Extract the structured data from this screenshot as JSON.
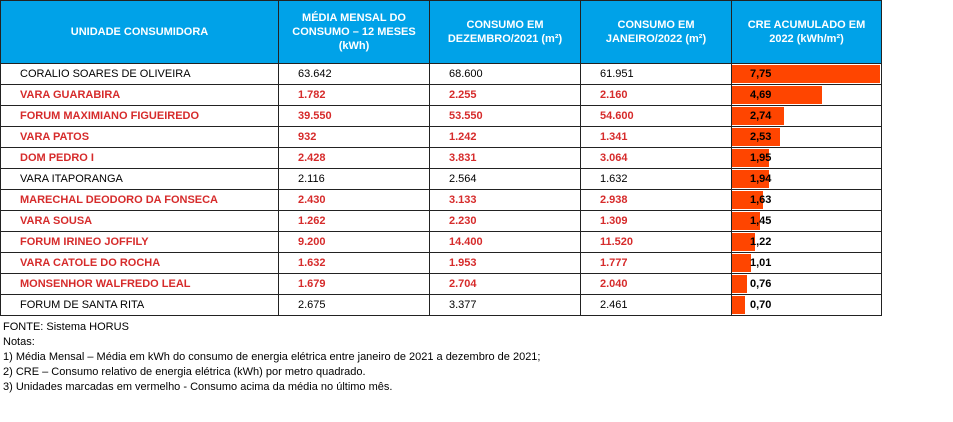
{
  "headers": {
    "unit": "UNIDADE CONSUMIDORA",
    "media": "MÉDIA MENSAL DO CONSUMO – 12 MESES (kWh)",
    "dez": "CONSUMO EM DEZEMBRO/2021 (m²)",
    "jan": "CONSUMO EM JANEIRO/2022 (m²)",
    "cre": "CRE ACUMULADO EM 2022 (kWh/m²)"
  },
  "rows": [
    {
      "name": "CORALIO SOARES DE OLIVEIRA",
      "media": "63.642",
      "dez": "68.600",
      "jan": "61.951",
      "cre": "7,75",
      "cre_value": 7.75,
      "red": false
    },
    {
      "name": "VARA GUARABIRA",
      "media": "1.782",
      "dez": "2.255",
      "jan": "2.160",
      "cre": "4,69",
      "cre_value": 4.69,
      "red": true
    },
    {
      "name": "FORUM MAXIMIANO FIGUEIREDO",
      "media": "39.550",
      "dez": "53.550",
      "jan": "54.600",
      "cre": "2,74",
      "cre_value": 2.74,
      "red": true
    },
    {
      "name": "VARA PATOS",
      "media": "932",
      "dez": "1.242",
      "jan": "1.341",
      "cre": "2,53",
      "cre_value": 2.53,
      "red": true
    },
    {
      "name": "DOM PEDRO I",
      "media": "2.428",
      "dez": "3.831",
      "jan": "3.064",
      "cre": "1,95",
      "cre_value": 1.95,
      "red": true
    },
    {
      "name": "VARA ITAPORANGA",
      "media": "2.116",
      "dez": "2.564",
      "jan": "1.632",
      "cre": "1,94",
      "cre_value": 1.94,
      "red": false
    },
    {
      "name": "MARECHAL DEODORO DA FONSECA",
      "media": "2.430",
      "dez": "3.133",
      "jan": "2.938",
      "cre": "1,63",
      "cre_value": 1.63,
      "red": true
    },
    {
      "name": "VARA SOUSA",
      "media": "1.262",
      "dez": "2.230",
      "jan": "1.309",
      "cre": "1,45",
      "cre_value": 1.45,
      "red": true
    },
    {
      "name": "FORUM IRINEO JOFFILY",
      "media": "9.200",
      "dez": "14.400",
      "jan": "11.520",
      "cre": "1,22",
      "cre_value": 1.22,
      "red": true
    },
    {
      "name": "VARA CATOLE DO ROCHA",
      "media": "1.632",
      "dez": "1.953",
      "jan": "1.777",
      "cre": "1,01",
      "cre_value": 1.01,
      "red": true
    },
    {
      "name": "MONSENHOR WALFREDO LEAL",
      "media": "1.679",
      "dez": "2.704",
      "jan": "2.040",
      "cre": "0,76",
      "cre_value": 0.76,
      "red": true
    },
    {
      "name": "FORUM DE SANTA RITA",
      "media": "2.675",
      "dez": "3.377",
      "jan": "2.461",
      "cre": "0,70",
      "cre_value": 0.7,
      "red": false
    }
  ],
  "cre_max": 7.75,
  "colors": {
    "header_bg": "#00a2e8",
    "bar": "#ff4500",
    "red_text": "#d62b2b"
  },
  "footer": {
    "fonte": "FONTE: Sistema HORUS",
    "notas": "Notas:",
    "nota1": "1) Média Mensal – Média em kWh do consumo de energia elétrica entre janeiro de 2021 a dezembro de 2021;",
    "nota2": "2) CRE – Consumo relativo de energia elétrica (kWh) por metro quadrado.",
    "nota3": "3) Unidades marcadas em vermelho -  Consumo acima da média no último mês."
  }
}
